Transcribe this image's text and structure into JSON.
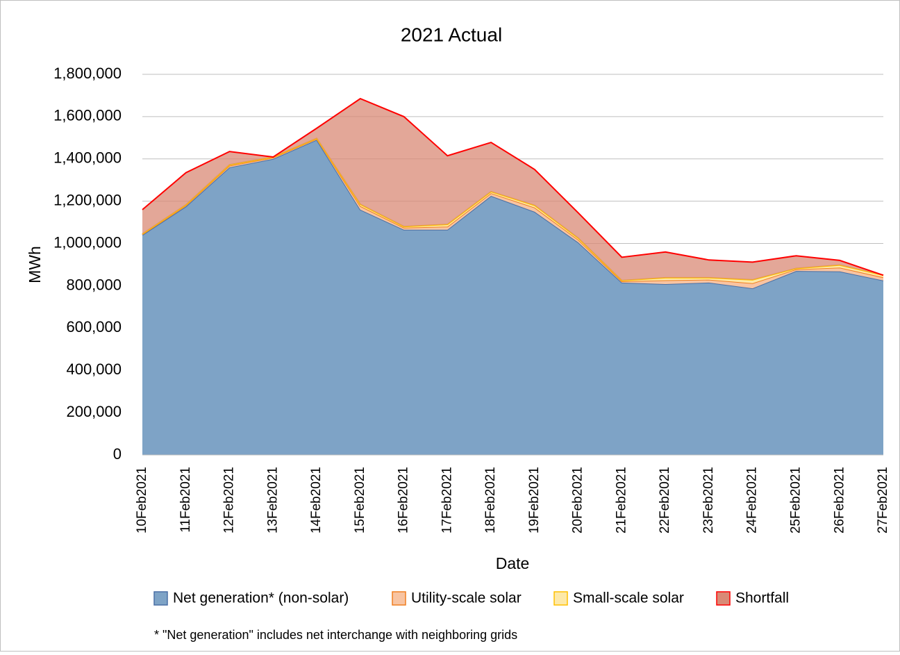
{
  "chart_data": {
    "type": "stacked_area",
    "title": "2021 Actual",
    "x_label": "Date",
    "y_label": "MWh",
    "footnote": "* \"Net generation\" includes net interchange with neighboring grids",
    "categories": [
      "10Feb2021",
      "11Feb2021",
      "12Feb2021",
      "13Feb2021",
      "14Feb2021",
      "15Feb2021",
      "16Feb2021",
      "17Feb2021",
      "18Feb2021",
      "19Feb2021",
      "20Feb2021",
      "21Feb2021",
      "22Feb2021",
      "23Feb2021",
      "24Feb2021",
      "25Feb2021",
      "26Feb2021",
      "27Feb2021"
    ],
    "series": [
      {
        "name": "Net generation* (non-solar)",
        "color": "#7ea3c6",
        "stroke": "#4a6fa5",
        "values": [
          1040000,
          1175000,
          1360000,
          1400000,
          1490000,
          1160000,
          1065000,
          1065000,
          1225000,
          1150000,
          1005000,
          815000,
          808000,
          815000,
          788000,
          870000,
          868000,
          825000
        ]
      },
      {
        "name": "Utility-scale solar",
        "color": "#f8c4a2",
        "stroke": "#f07f20",
        "values": [
          3000,
          5000,
          8000,
          6000,
          5000,
          17000,
          10000,
          15000,
          13000,
          20000,
          13000,
          6000,
          18000,
          14000,
          24000,
          8000,
          18000,
          15000
        ]
      },
      {
        "name": "Small-scale solar",
        "color": "#fde9a9",
        "stroke": "#ffc000",
        "values": [
          2000,
          3000,
          4000,
          3000,
          2000,
          8000,
          5000,
          10000,
          7000,
          10000,
          7000,
          4000,
          12000,
          9000,
          16000,
          4000,
          12000,
          10000
        ]
      },
      {
        "name": "Shortfall",
        "color": "#d98a76",
        "stroke": "#ff0000",
        "values": [
          115000,
          152000,
          63000,
          0,
          48000,
          500000,
          520000,
          325000,
          233000,
          170000,
          120000,
          110000,
          122000,
          84000,
          84000,
          60000,
          22000,
          0
        ]
      }
    ],
    "ylim": [
      0,
      1800000
    ],
    "yticks": [
      0,
      {
        "value": 200000,
        "label": "200,000"
      },
      {
        "value": 400000,
        "label": "400,000"
      },
      {
        "value": 600000,
        "label": "600,000"
      },
      {
        "value": 800000,
        "label": "800,000"
      },
      {
        "value": 1000000,
        "label": "1,000,000"
      },
      {
        "value": 1200000,
        "label": "1,200,000"
      },
      {
        "value": 1400000,
        "label": "1,400,000"
      },
      {
        "value": 1600000,
        "label": "1,600,000"
      },
      {
        "value": 1800000,
        "label": "1,800,000"
      }
    ],
    "grid": true,
    "legend": "bottom"
  }
}
